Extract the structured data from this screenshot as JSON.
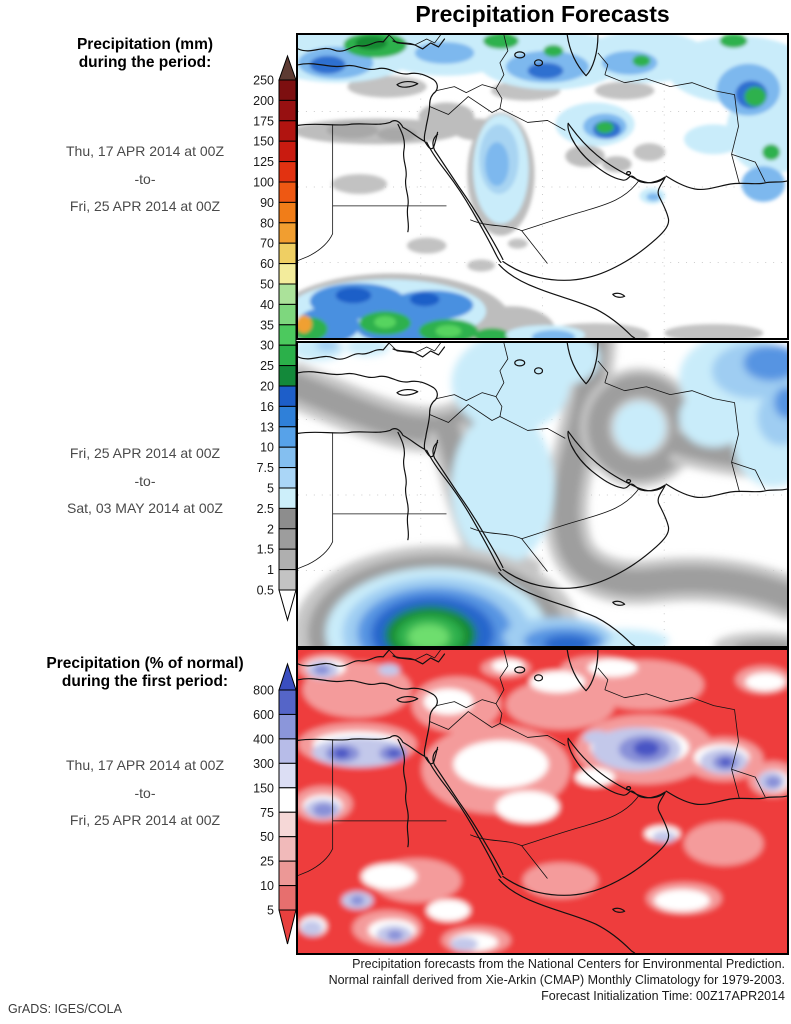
{
  "title": "Precipitation Forecasts",
  "left_panel": {
    "period1": {
      "heading_line1": "Precipitation (mm)",
      "heading_line2": "during the period:",
      "start": "Thu, 17 APR 2014 at 00Z",
      "separator": "-to-",
      "end": "Fri, 25 APR 2014 at 00Z"
    },
    "period2": {
      "start": "Fri, 25 APR 2014 at 00Z",
      "separator": "-to-",
      "end": "Sat, 03 MAY 2014 at 00Z"
    },
    "period3": {
      "heading_line1": "Precipitation (% of normal)",
      "heading_line2": "during the first period:",
      "start": "Thu, 17 APR 2014 at 00Z",
      "separator": "-to-",
      "end": "Fri, 25 APR 2014 at 00Z"
    }
  },
  "colorbars": {
    "mm": {
      "unit": "mm",
      "boundaries": [
        "250",
        "200",
        "175",
        "150",
        "125",
        "100",
        "90",
        "80",
        "70",
        "60",
        "50",
        "40",
        "35",
        "30",
        "25",
        "20",
        "16",
        "13",
        "10",
        "7.5",
        "5",
        "2.5",
        "2",
        "1.5",
        "1",
        "0.5"
      ],
      "segment_colors": [
        "#7d0f10",
        "#971011",
        "#b11410",
        "#c91b10",
        "#e23211",
        "#ee5813",
        "#f17d18",
        "#f19e30",
        "#efcf63",
        "#f3ec9c",
        "#abe29a",
        "#7ed77e",
        "#4cc95e",
        "#2bb04a",
        "#13893a",
        "#1d5ec9",
        "#2f80d9",
        "#57a2e9",
        "#84bff0",
        "#aad6f7",
        "#cdeffa",
        "#8d8d8d",
        "#9d9d9d",
        "#afafaf",
        "#c3c3c3"
      ],
      "top_arrow_color": "#5d3b33",
      "bottom_arrow_color": "#ffffff"
    },
    "pct": {
      "unit": "% of normal",
      "boundaries": [
        "800",
        "600",
        "400",
        "300",
        "150",
        "75",
        "50",
        "25",
        "10",
        "5"
      ],
      "segment_colors": [
        "#5565c8",
        "#8b96da",
        "#b7bce8",
        "#dcdef4",
        "#ffffff",
        "#f6d8d7",
        "#f1baba",
        "#ec9896",
        "#e76f6e"
      ],
      "top_arrow_color": "#3a4ec0",
      "bottom_arrow_color": "#e8403e"
    }
  },
  "panels": {
    "panel1": "Precipitation (mm) forecast, first period",
    "panel2": "Precipitation (mm) forecast, second period",
    "panel3": "Precipitation (% of normal), first period"
  },
  "footer": {
    "line1": "Precipitation forecasts from the National Centers for Environmental Prediction.",
    "line2": "Normal rainfall derived from Xie-Arkin (CMAP) Monthly Climatology for 1979-2003.",
    "line3": "Forecast Initialization Time: 00Z17APR2014"
  },
  "credit": "GrADS: IGES/COLA"
}
